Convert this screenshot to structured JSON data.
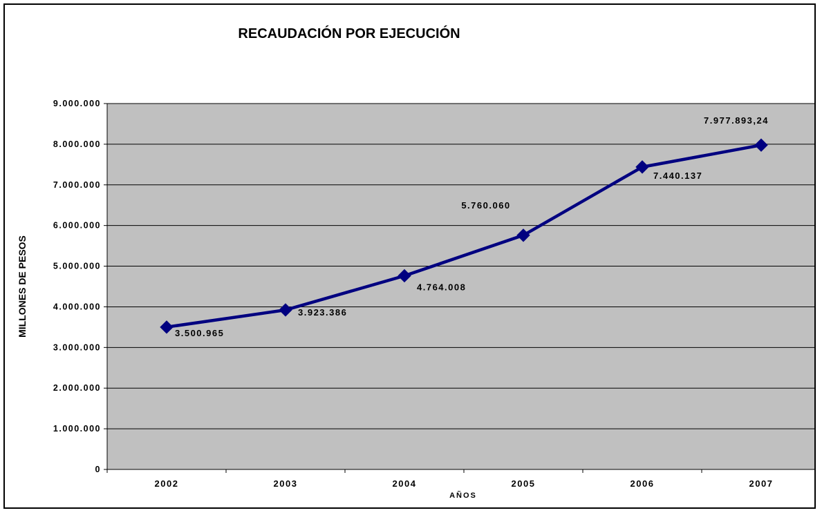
{
  "chart_data": {
    "type": "line",
    "title": "RECAUDACIÓN POR EJECUCIÓN",
    "xlabel": "AÑOS",
    "ylabel": "MILLONES DE PESOS",
    "categories": [
      "2002",
      "2003",
      "2004",
      "2005",
      "2006",
      "2007"
    ],
    "series": [
      {
        "values": [
          3500965,
          3923386,
          4764008,
          5760060,
          7440137,
          7977893.24
        ],
        "data_labels": [
          "3.500.965",
          "3.923.386",
          "4.764.008",
          "5.760.060",
          "7.440.137",
          "7.977.893,24"
        ]
      }
    ],
    "ylim": [
      0,
      9000000
    ],
    "yticks": [
      0,
      1000000,
      2000000,
      3000000,
      4000000,
      5000000,
      6000000,
      7000000,
      8000000,
      9000000
    ],
    "ytick_labels": [
      "0",
      "1.000.000",
      "2.000.000",
      "3.000.000",
      "4.000.000",
      "5.000.000",
      "6.000.000",
      "7.000.000",
      "8.000.000",
      "9.000.000"
    ],
    "grid": true,
    "legend": "none",
    "colors": {
      "line": "#000080",
      "plot_background": "#c0c0c0",
      "gridline": "#000000"
    }
  }
}
